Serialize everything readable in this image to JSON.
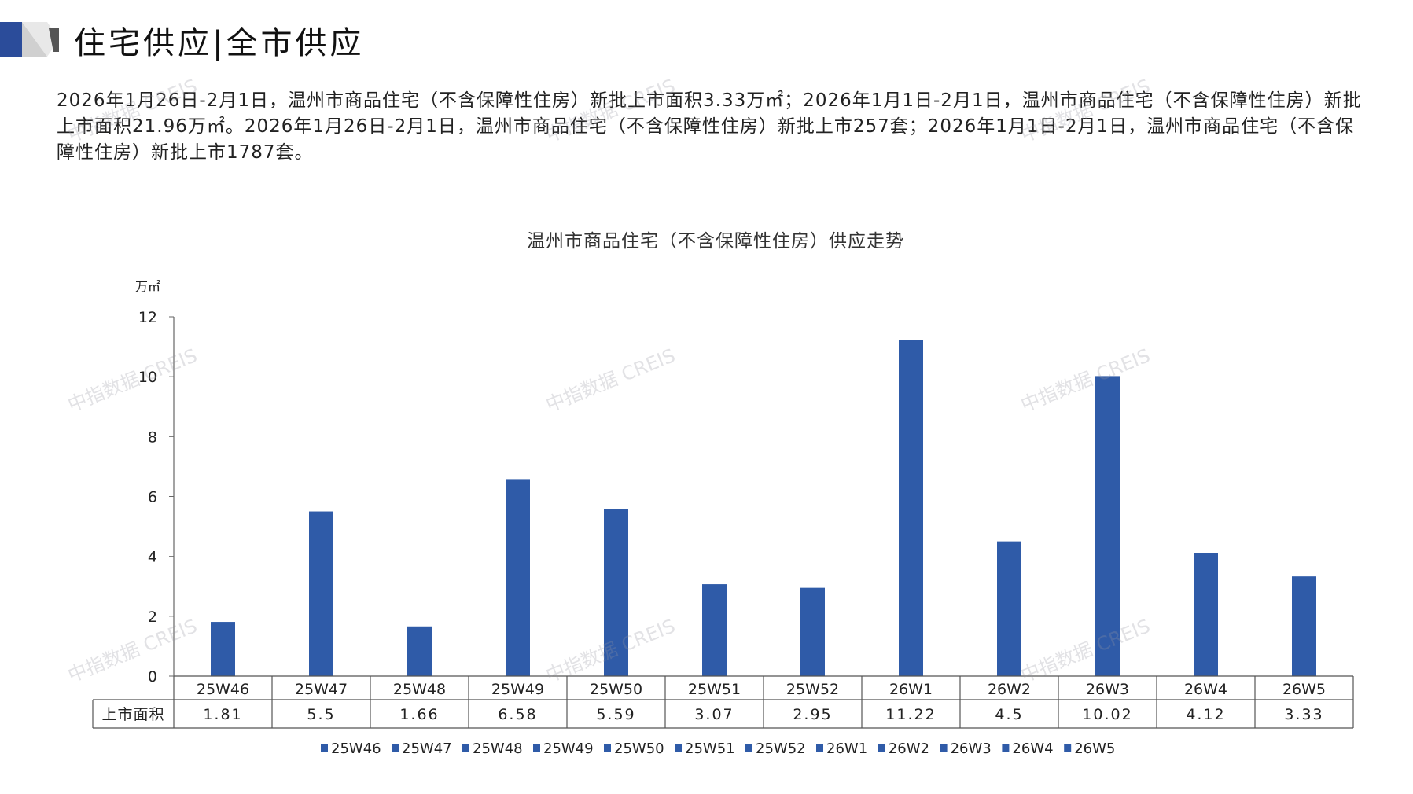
{
  "page": {
    "title": "住宅供应|全市供应",
    "summary": "2026年1月26日-2月1日，温州市商品住宅（不含保障性住房）新批上市面积3.33万㎡；2026年1月1日-2月1日，温州市商品住宅（不含保障性住房）新批上市面积21.96万㎡。2026年1月26日-2月1日，温州市商品住宅（不含保障性住房）新批上市257套；2026年1月1日-2月1日，温州市商品住宅（不含保障性住房）新批上市1787套。",
    "watermark": "中指数据 CREIS"
  },
  "colors": {
    "bar": "#2f5ba8",
    "accent_dark": "#2b4c9a",
    "accent_grey": "#c8c8c8"
  },
  "chart_data": {
    "type": "bar",
    "title": "温州市商品住宅（不含保障性住房）供应走势",
    "ylabel": "万㎡",
    "xlabel": "",
    "ylim": [
      0,
      12
    ],
    "yticks": [
      0,
      2,
      4,
      6,
      8,
      10,
      12
    ],
    "categories": [
      "25W46",
      "25W47",
      "25W48",
      "25W49",
      "25W50",
      "25W51",
      "25W52",
      "26W1",
      "26W2",
      "26W3",
      "26W4",
      "26W5"
    ],
    "series": [
      {
        "name": "上市面积",
        "values": [
          1.81,
          5.5,
          1.66,
          6.58,
          5.59,
          3.07,
          2.95,
          11.22,
          4.5,
          10.02,
          4.12,
          3.33
        ],
        "value_labels": [
          "1.81",
          "5.5",
          "1.66",
          "6.58",
          "5.59",
          "3.07",
          "2.95",
          "11.22",
          "4.5",
          "10.02",
          "4.12",
          "3.33"
        ]
      }
    ],
    "legend": [
      "25W46",
      "25W47",
      "25W48",
      "25W49",
      "25W50",
      "25W51",
      "25W52",
      "26W1",
      "26W2",
      "26W3",
      "26W4",
      "26W5"
    ],
    "legend_position": "bottom",
    "data_table": true,
    "grid": false
  }
}
